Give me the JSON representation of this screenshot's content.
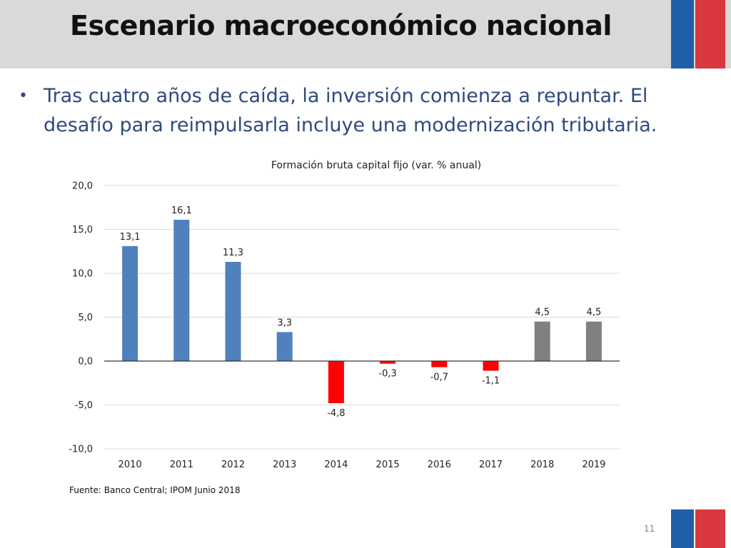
{
  "slide": {
    "title": "Escenario macroeconómico nacional",
    "bullet": "Tras cuatro  años de caída, la inversión comienza a repuntar. El desafío para reimpulsarla incluye una modernización tributaria.",
    "source": "Fuente: Banco Central; IPOM Junio 2018",
    "page_number": "11"
  },
  "colors": {
    "header_bg": "#d9d9d9",
    "flag_blue": "#1f5fa8",
    "flag_red": "#d9383f",
    "bar_blue": "#4f81bd",
    "bar_red": "#ff0000",
    "bar_gray": "#808080"
  },
  "chart_data": {
    "type": "bar",
    "title": "Formación bruta capital fijo (var. % anual)",
    "categories": [
      "2010",
      "2011",
      "2012",
      "2013",
      "2014",
      "2015",
      "2016",
      "2017",
      "2018",
      "2019"
    ],
    "values": [
      13.1,
      16.1,
      11.3,
      3.3,
      -4.8,
      -0.3,
      -0.7,
      -1.1,
      4.5,
      4.5
    ],
    "value_labels": [
      "13,1",
      "16,1",
      "11,3",
      "3,3",
      "-4,8",
      "-0,3",
      "-0,7",
      "-1,1",
      "4,5",
      "4,5"
    ],
    "bar_colors": [
      "#4f81bd",
      "#4f81bd",
      "#4f81bd",
      "#4f81bd",
      "#ff0000",
      "#ff0000",
      "#ff0000",
      "#ff0000",
      "#808080",
      "#808080"
    ],
    "ylim": [
      -10,
      20
    ],
    "yticks": [
      20,
      15,
      10,
      5,
      0,
      -5,
      -10
    ],
    "ytick_labels": [
      "20,0",
      "15,0",
      "10,0",
      "5,0",
      "0,0",
      "-5,0",
      "-10,0"
    ],
    "xlabel": "",
    "ylabel": "",
    "grid": true,
    "legend": false
  }
}
